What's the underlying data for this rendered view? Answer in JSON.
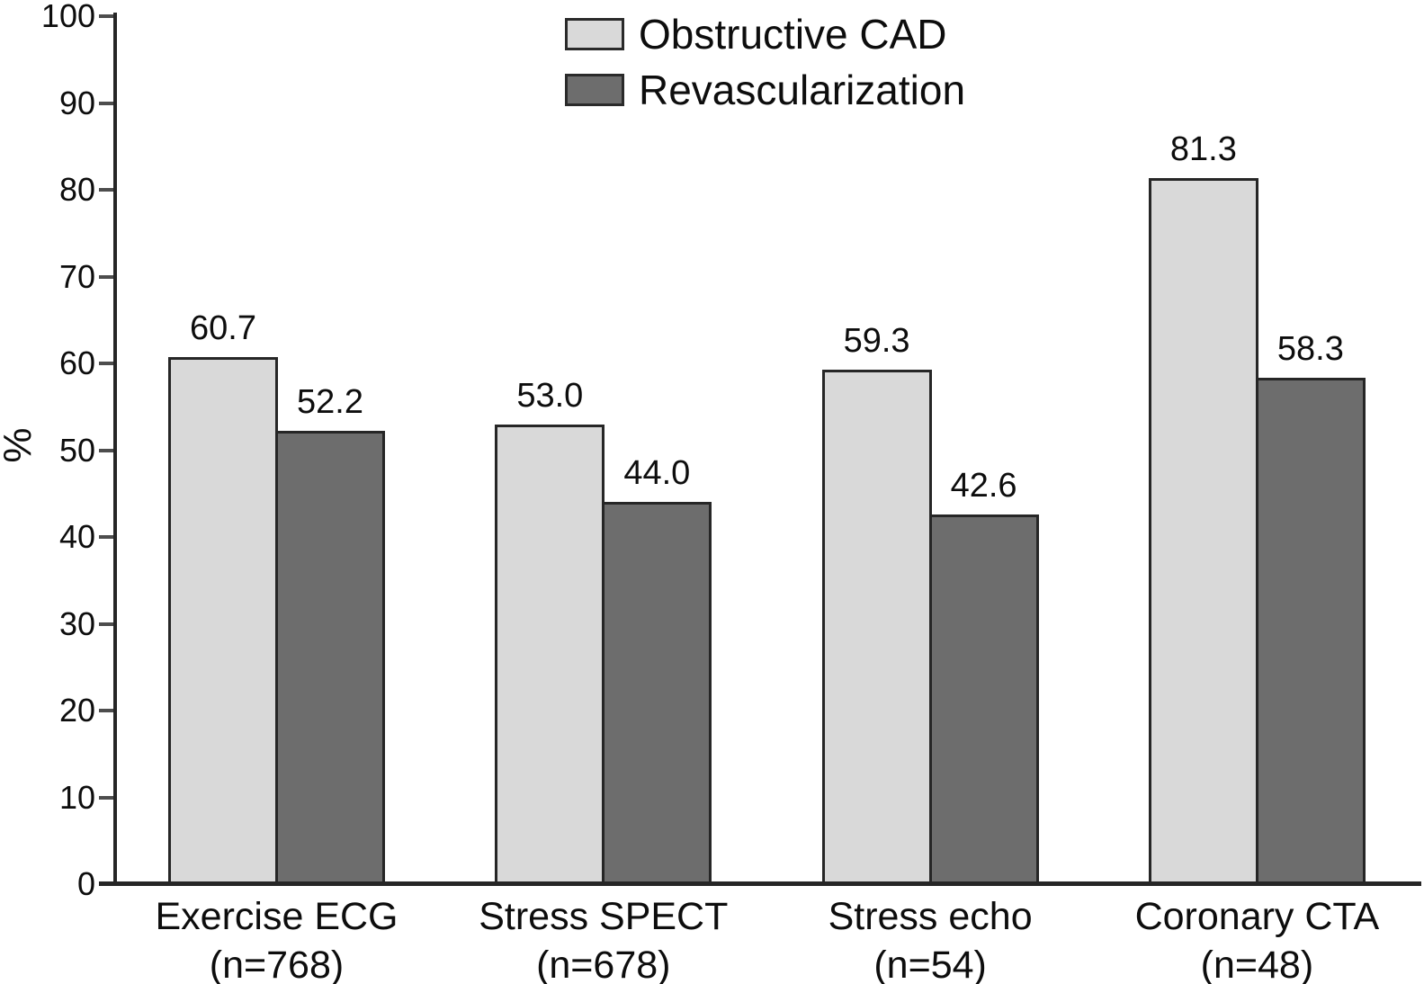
{
  "chart_data": {
    "type": "bar",
    "title": "",
    "ylabel": "%",
    "ylim": [
      0,
      100
    ],
    "yticks": [
      0,
      10,
      20,
      30,
      40,
      50,
      60,
      70,
      80,
      90,
      100
    ],
    "grid": false,
    "legend_position": "top-center-inside",
    "categories": [
      "Exercise ECG",
      "Stress SPECT",
      "Stress echo",
      "Coronary CTA"
    ],
    "category_sublabels": [
      "(n=768)",
      "(n=678)",
      "(n=54)",
      "(n=48)"
    ],
    "series": [
      {
        "name": "Obstructive CAD",
        "color": "#d9d9d9",
        "values": [
          60.7,
          53.0,
          59.3,
          81.3
        ]
      },
      {
        "name": "Revascularization",
        "color": "#6d6d6d",
        "values": [
          52.2,
          44.0,
          42.6,
          58.3
        ]
      }
    ],
    "value_label_decimals": 1,
    "colors": {
      "axis": "#262626",
      "tick": "#4d4d4d",
      "text": "#0d0d0d",
      "bar_border": "#262626"
    }
  }
}
